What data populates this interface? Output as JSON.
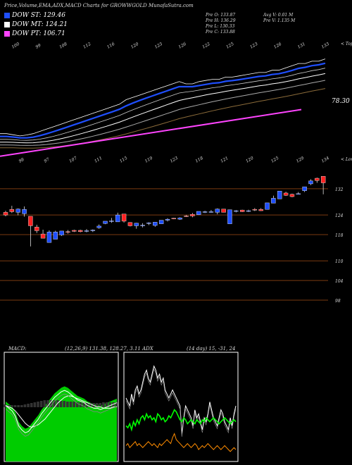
{
  "header": {
    "title": "Price,Volume,EMA,ADX,MACD Charts for GROWWGOLD MunafaSutra.com",
    "legend": [
      {
        "label": "DOW ST: 129.46",
        "color": "#1f4fff"
      },
      {
        "label": "DOW MT: 124.21",
        "color": "#ffffff"
      },
      {
        "label": "DOW PT: 106.71",
        "color": "#ff44ff"
      }
    ],
    "stats_left": [
      "Pre   O: 133.87",
      "Pre   H: 136.29",
      "Pre   L: 130.33",
      "Pre   C: 133.88"
    ],
    "stats_right": [
      "Avg V: 0.01 M",
      "Pre   V: 1.135 M"
    ]
  },
  "colors": {
    "up": "#1f4fff",
    "down": "#ff2222",
    "ema_short": "#1f4fff",
    "ema_long": "#ff44ff",
    "grid": "#7a3a10",
    "macd_fill": "#00cc00",
    "adx_di_plus": "#00ff00",
    "adx_di_minus": "#ff8c00"
  },
  "chart_data": [
    {
      "type": "line",
      "name": "ema_panel",
      "top_labels": [
        "100",
        "99",
        "108",
        "112",
        "116",
        "120",
        "123",
        "126",
        "122",
        "125",
        "123",
        "126",
        "131",
        "133"
      ],
      "right_label": "78.30",
      "corner_label": "< Topo",
      "series_close": [
        100,
        100,
        99.5,
        99,
        99.4,
        100,
        101,
        102,
        103,
        104,
        105,
        106,
        107,
        108,
        109,
        110,
        111,
        112,
        113,
        115,
        116,
        117,
        118,
        119,
        120,
        121,
        122,
        123,
        122,
        122,
        123,
        123.5,
        124,
        124,
        125,
        125,
        125.5,
        126,
        126.5,
        127,
        127,
        128,
        128,
        129,
        130,
        131,
        131,
        132,
        132,
        133
      ]
    },
    {
      "type": "candlestick",
      "name": "price_panel",
      "top_labels": [
        "98",
        "97",
        "107",
        "111",
        "115",
        "119",
        "123",
        "118",
        "121",
        "120",
        "125",
        "129",
        "134"
      ],
      "corner_label": "< Lowo",
      "y_ticks": [
        132,
        124,
        118,
        110,
        104,
        98
      ],
      "ylim": [
        95,
        138
      ],
      "candles": [
        {
          "o": 124.8,
          "h": 125.3,
          "l": 123.6,
          "c": 124.0
        },
        {
          "o": 125.7,
          "h": 126.8,
          "l": 124.6,
          "c": 125.0
        },
        {
          "o": 124.8,
          "h": 126.0,
          "l": 123.9,
          "c": 125.8
        },
        {
          "o": 124.4,
          "h": 126.6,
          "l": 123.5,
          "c": 125.7
        },
        {
          "o": 123.6,
          "h": 123.6,
          "l": 114.4,
          "c": 120.7
        },
        {
          "o": 120.3,
          "h": 121.0,
          "l": 118.5,
          "c": 119.2
        },
        {
          "o": 118.2,
          "h": 119.5,
          "l": 116.9,
          "c": 116.9
        },
        {
          "o": 115.6,
          "h": 119.3,
          "l": 115.6,
          "c": 118.8
        },
        {
          "o": 116.6,
          "h": 119.2,
          "l": 116.6,
          "c": 118.8
        },
        {
          "o": 117.9,
          "h": 119.1,
          "l": 117.6,
          "c": 119.1
        },
        {
          "o": 118.9,
          "h": 119.4,
          "l": 118.3,
          "c": 118.8
        },
        {
          "o": 119.3,
          "h": 119.5,
          "l": 118.8,
          "c": 119.0
        },
        {
          "o": 119.3,
          "h": 119.5,
          "l": 118.7,
          "c": 118.9
        },
        {
          "o": 119.1,
          "h": 119.7,
          "l": 118.7,
          "c": 119.2
        },
        {
          "o": 119.3,
          "h": 119.6,
          "l": 118.8,
          "c": 119.4
        },
        {
          "o": 120.1,
          "h": 121.1,
          "l": 119.8,
          "c": 120.6
        },
        {
          "o": 121.4,
          "h": 122.1,
          "l": 121.2,
          "c": 122.1
        },
        {
          "o": 122.0,
          "h": 123.1,
          "l": 121.6,
          "c": 122.2
        },
        {
          "o": 121.9,
          "h": 124.7,
          "l": 121.9,
          "c": 124.0
        },
        {
          "o": 124.3,
          "h": 124.3,
          "l": 121.7,
          "c": 122.1
        },
        {
          "o": 121.7,
          "h": 121.8,
          "l": 120.5,
          "c": 120.7
        },
        {
          "o": 120.7,
          "h": 121.6,
          "l": 119.8,
          "c": 121.5
        },
        {
          "o": 120.9,
          "h": 121.5,
          "l": 120.2,
          "c": 120.9
        },
        {
          "o": 121.4,
          "h": 121.8,
          "l": 120.9,
          "c": 121.6
        },
        {
          "o": 120.8,
          "h": 121.8,
          "l": 120.4,
          "c": 121.8
        },
        {
          "o": 121.3,
          "h": 122.4,
          "l": 121.3,
          "c": 122.4
        },
        {
          "o": 122.4,
          "h": 123.0,
          "l": 122.0,
          "c": 122.7
        },
        {
          "o": 123.0,
          "h": 123.1,
          "l": 122.7,
          "c": 122.8
        },
        {
          "o": 122.7,
          "h": 123.3,
          "l": 122.5,
          "c": 123.1
        },
        {
          "o": 123.7,
          "h": 124.0,
          "l": 123.4,
          "c": 123.6
        },
        {
          "o": 124.2,
          "h": 124.6,
          "l": 123.3,
          "c": 123.7
        },
        {
          "o": 124.1,
          "h": 125.1,
          "l": 124.0,
          "c": 125.1
        },
        {
          "o": 124.8,
          "h": 125.3,
          "l": 124.6,
          "c": 125.0
        },
        {
          "o": 125.0,
          "h": 125.5,
          "l": 124.7,
          "c": 125.0
        },
        {
          "o": 124.8,
          "h": 126.0,
          "l": 124.2,
          "c": 125.8
        },
        {
          "o": 125.8,
          "h": 125.8,
          "l": 124.8,
          "c": 124.8
        },
        {
          "o": 121.3,
          "h": 125.6,
          "l": 121.3,
          "c": 125.6
        },
        {
          "o": 125.1,
          "h": 125.5,
          "l": 124.8,
          "c": 125.3
        },
        {
          "o": 125.5,
          "h": 125.6,
          "l": 124.9,
          "c": 125.0
        },
        {
          "o": 125.1,
          "h": 125.6,
          "l": 124.9,
          "c": 125.3
        },
        {
          "o": 125.7,
          "h": 126.1,
          "l": 125.2,
          "c": 125.5
        },
        {
          "o": 125.7,
          "h": 126.1,
          "l": 125.2,
          "c": 125.3
        },
        {
          "o": 125.7,
          "h": 127.7,
          "l": 125.7,
          "c": 127.7
        },
        {
          "o": 127.6,
          "h": 129.9,
          "l": 127.6,
          "c": 129.1
        },
        {
          "o": 128.9,
          "h": 131.3,
          "l": 128.9,
          "c": 131.3
        },
        {
          "o": 130.7,
          "h": 131.1,
          "l": 129.8,
          "c": 130.0
        },
        {
          "o": 130.3,
          "h": 130.5,
          "l": 129.4,
          "c": 129.6
        },
        {
          "o": 130.5,
          "h": 131.0,
          "l": 130.3,
          "c": 130.5
        },
        {
          "o": 131.4,
          "h": 132.6,
          "l": 131.0,
          "c": 132.6
        },
        {
          "o": 133.5,
          "h": 134.9,
          "l": 133.1,
          "c": 134.4
        },
        {
          "o": 135.2,
          "h": 135.4,
          "l": 133.8,
          "c": 134.5
        },
        {
          "o": 135.8,
          "h": 135.8,
          "l": 130.3,
          "c": 133.8
        }
      ]
    },
    {
      "type": "line",
      "name": "macd_panel",
      "label": "MACD:",
      "params": "(12,26,9) 131.38, 128.27, 3.11 ADX",
      "macd": [
        3.0,
        2.8,
        2.6,
        2.2,
        1.5,
        1.2,
        1.0,
        1.1,
        1.4,
        1.7,
        2.0,
        2.4,
        2.7,
        3.0,
        3.3,
        3.6,
        3.8,
        4.0,
        4.1,
        4.0,
        3.8,
        3.6,
        3.4,
        3.3,
        3.2,
        3.0,
        2.9,
        2.8,
        2.8,
        2.7,
        2.8,
        2.9,
        3.0,
        3.1,
        3.2
      ],
      "signal": [
        3.1,
        3.0,
        2.9,
        2.7,
        2.4,
        2.1,
        1.8,
        1.6,
        1.5,
        1.6,
        1.7,
        1.9,
        2.1,
        2.4,
        2.7,
        3.0,
        3.3,
        3.5,
        3.7,
        3.8,
        3.8,
        3.7,
        3.6,
        3.5,
        3.4,
        3.3,
        3.2,
        3.1,
        3.0,
        3.0,
        2.9,
        2.9,
        2.9,
        3.0,
        3.0
      ],
      "hist": [
        0.4,
        0.3,
        0.3,
        0.3,
        0.3,
        0.3,
        0.4,
        0.5,
        0.6,
        0.7,
        0.8,
        0.9,
        1.0,
        1.0,
        1.0,
        1.0,
        1.0,
        0.9,
        0.9,
        0.8,
        0.8,
        0.8,
        0.7,
        0.7,
        0.7,
        0.6,
        0.6,
        0.6,
        0.6,
        0.6,
        0.7,
        0.7,
        0.7,
        0.7,
        0.7
      ]
    },
    {
      "type": "line",
      "name": "adx_panel",
      "params": "(14 day) 15, -31, 24",
      "adx": [
        32,
        30,
        28,
        34,
        30,
        36,
        38,
        34,
        36,
        40,
        44,
        46,
        42,
        40,
        44,
        48,
        46,
        42,
        44,
        40,
        42,
        36,
        34,
        32,
        34,
        36,
        34,
        32,
        30,
        28,
        14,
        22,
        28,
        26,
        24,
        22,
        18,
        26,
        22,
        24,
        20,
        16,
        22,
        20,
        24,
        30,
        26,
        22,
        20,
        18,
        22,
        26,
        24,
        20,
        18,
        16,
        22,
        18,
        24,
        28
      ],
      "di_plus": [
        18,
        17,
        19,
        16,
        20,
        18,
        21,
        19,
        22,
        23,
        21,
        24,
        22,
        23,
        21,
        22,
        20,
        24,
        23,
        21,
        22,
        20,
        21,
        23,
        22,
        24,
        26,
        25,
        23,
        21,
        20,
        22,
        21,
        19,
        20,
        21,
        20,
        19,
        21,
        20,
        19,
        21,
        20,
        22,
        21,
        20,
        21,
        22,
        21,
        20,
        19,
        20,
        21,
        22,
        21,
        20,
        19,
        20,
        21,
        20
      ],
      "di_minus": [
        8,
        9,
        7,
        8,
        9,
        10,
        8,
        9,
        8,
        7,
        8,
        9,
        10,
        9,
        8,
        9,
        8,
        7,
        9,
        8,
        9,
        10,
        11,
        10,
        9,
        12,
        14,
        11,
        10,
        9,
        8,
        7,
        8,
        9,
        8,
        7,
        8,
        9,
        8,
        6,
        7,
        8,
        7,
        8,
        9,
        8,
        7,
        6,
        7,
        8,
        7,
        6,
        7,
        8,
        7,
        6,
        5,
        6,
        7,
        6
      ]
    }
  ]
}
